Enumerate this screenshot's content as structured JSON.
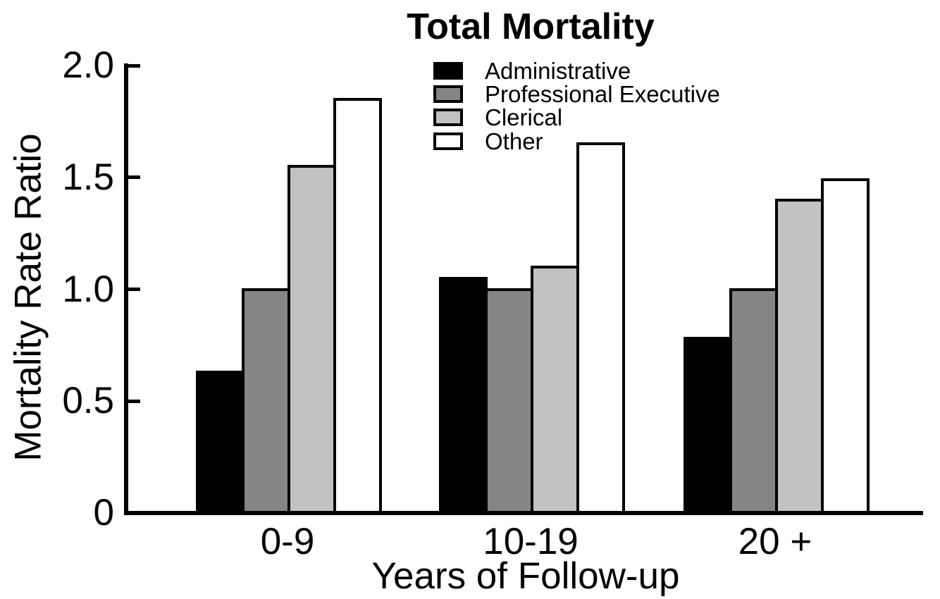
{
  "chart_data": {
    "type": "bar",
    "title": "Total Mortality",
    "xlabel": "Years of Follow-up",
    "ylabel": "Mortality Rate Ratio",
    "categories": [
      "0-9",
      "10-19",
      "20+"
    ],
    "xtick_labels": [
      "0-9",
      "10-19",
      "20 +"
    ],
    "series": [
      {
        "name": "Administrative",
        "color": "#000000",
        "values": [
          0.63,
          1.05,
          0.78
        ]
      },
      {
        "name": "Professional Executive",
        "color": "#858585",
        "values": [
          1.0,
          1.0,
          1.0
        ]
      },
      {
        "name": "Clerical",
        "color": "#c2c2c2",
        "values": [
          1.55,
          1.1,
          1.4
        ]
      },
      {
        "name": "Other",
        "color": "#ffffff",
        "values": [
          1.85,
          1.65,
          1.49
        ]
      }
    ],
    "ylim": [
      0,
      2.0
    ],
    "yticks": [
      0,
      0.5,
      1.0,
      1.5,
      2.0
    ],
    "ytick_labels": [
      "0",
      "0.5",
      "1.0",
      "1.5",
      "2.0"
    ],
    "bar_outline_color": "#000000",
    "legend_position": "upper center",
    "grid": false
  }
}
